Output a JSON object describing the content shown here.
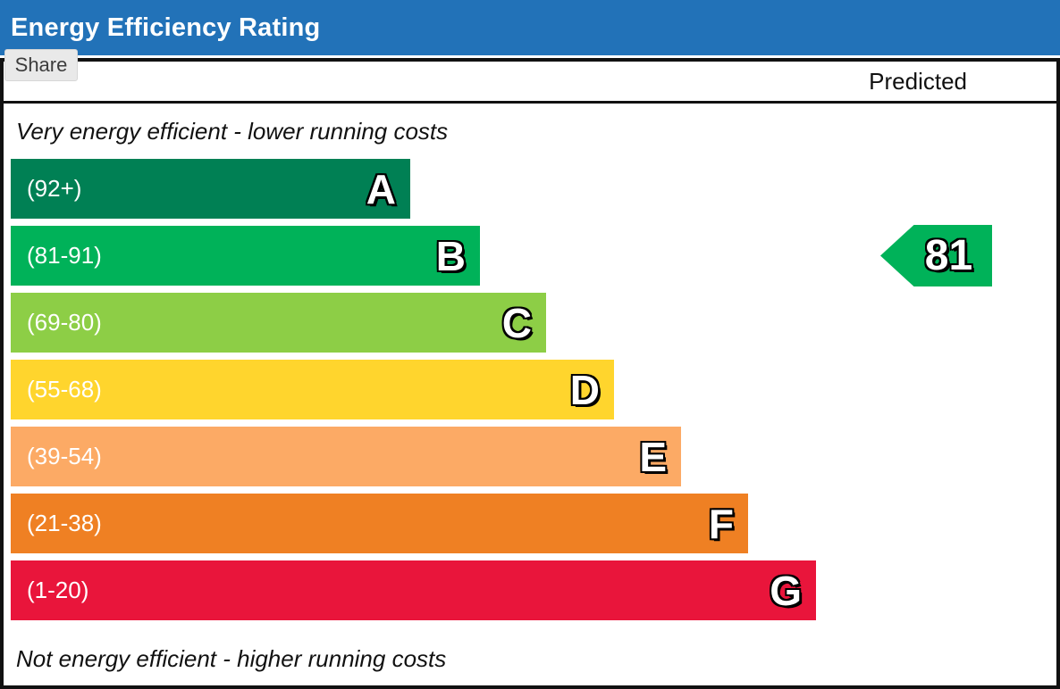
{
  "header": {
    "title": "Energy Efficiency Rating",
    "bg_color": "#2272b8",
    "text_color": "#ffffff"
  },
  "share_button": {
    "label": "Share"
  },
  "chart": {
    "predicted_label": "Predicted",
    "top_note": "Very energy efficient - lower running costs",
    "bottom_note": "Not energy efficient - higher running costs",
    "bands": [
      {
        "letter": "A",
        "range": "(92+)",
        "color": "#008054"
      },
      {
        "letter": "B",
        "range": "(81-91)",
        "color": "#00b259"
      },
      {
        "letter": "C",
        "range": "(69-80)",
        "color": "#8dce46"
      },
      {
        "letter": "D",
        "range": "(55-68)",
        "color": "#ffd52d"
      },
      {
        "letter": "E",
        "range": "(39-54)",
        "color": "#fcaa65"
      },
      {
        "letter": "F",
        "range": "(21-38)",
        "color": "#ef8023"
      },
      {
        "letter": "G",
        "range": "(1-20)",
        "color": "#e9153b"
      }
    ],
    "indicator": {
      "value": "81",
      "band": "B",
      "color": "#00b259"
    }
  },
  "chart_data": {
    "type": "bar",
    "title": "Energy Efficiency Rating",
    "orientation": "horizontal",
    "categories": [
      "A",
      "B",
      "C",
      "D",
      "E",
      "F",
      "G"
    ],
    "band_score_ranges": [
      "92+",
      "81-91",
      "69-80",
      "55-68",
      "39-54",
      "21-38",
      "1-20"
    ],
    "band_colors": [
      "#008054",
      "#00b259",
      "#8dce46",
      "#ffd52d",
      "#fcaa65",
      "#ef8023",
      "#e9153b"
    ],
    "series": [
      {
        "name": "Predicted",
        "value": 81,
        "band": "B"
      }
    ],
    "annotations": [
      "Very energy efficient - lower running costs",
      "Not energy efficient - higher running costs"
    ],
    "legend_position": "none",
    "grid": false
  }
}
